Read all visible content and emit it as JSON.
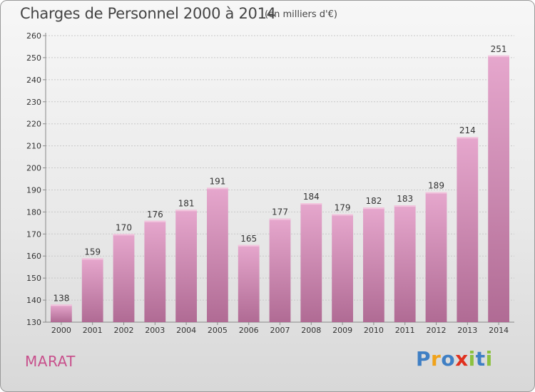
{
  "header": {
    "title": "Charges de Personnel 2000 à 2014",
    "subtitle": "(en milliers d'€)"
  },
  "footer": {
    "town": "MARAT",
    "logo_text": "Proxiti"
  },
  "colors": {
    "bar_top": "#e6a7cd",
    "bar_bottom": "#b06b94",
    "town": "#c8508c",
    "axis_text": "#333333",
    "grid": "#c8c8c8"
  },
  "chart_data": {
    "type": "bar",
    "categories": [
      "2000",
      "2001",
      "2002",
      "2003",
      "2004",
      "2005",
      "2006",
      "2007",
      "2008",
      "2009",
      "2010",
      "2011",
      "2012",
      "2013",
      "2014"
    ],
    "values": [
      138,
      159,
      170,
      176,
      181,
      191,
      165,
      177,
      184,
      179,
      182,
      183,
      189,
      214,
      251
    ],
    "title": "Charges de Personnel 2000 à 2014",
    "subtitle": "(en milliers d'€)",
    "xlabel": "",
    "ylabel": "",
    "ylim": [
      130,
      260
    ],
    "yticks": [
      130,
      140,
      150,
      160,
      170,
      180,
      190,
      200,
      210,
      220,
      230,
      240,
      250,
      260
    ],
    "grid": true,
    "data_labels": true
  }
}
